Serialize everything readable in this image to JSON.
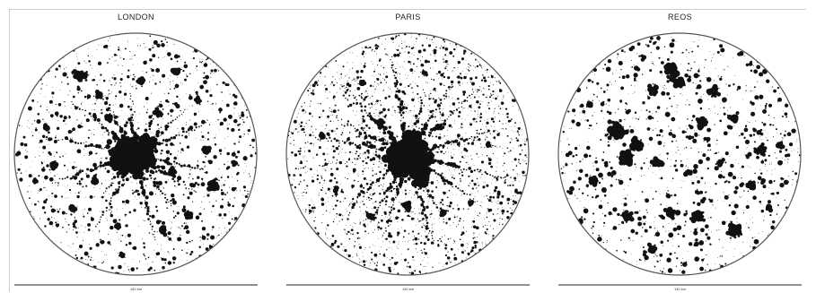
{
  "panels": [
    {
      "title": "LONDON",
      "scale_label": "140 km",
      "pattern": "monocentric"
    },
    {
      "title": "PARIS",
      "scale_label": "140 km",
      "pattern": "monocentric-dense-core"
    },
    {
      "title": "REOS",
      "scale_label": "140 km",
      "pattern": "polycentric"
    }
  ],
  "colors": {
    "background": "#ffffff",
    "urban_fill": "#111111",
    "circle_stroke": "#555555"
  }
}
